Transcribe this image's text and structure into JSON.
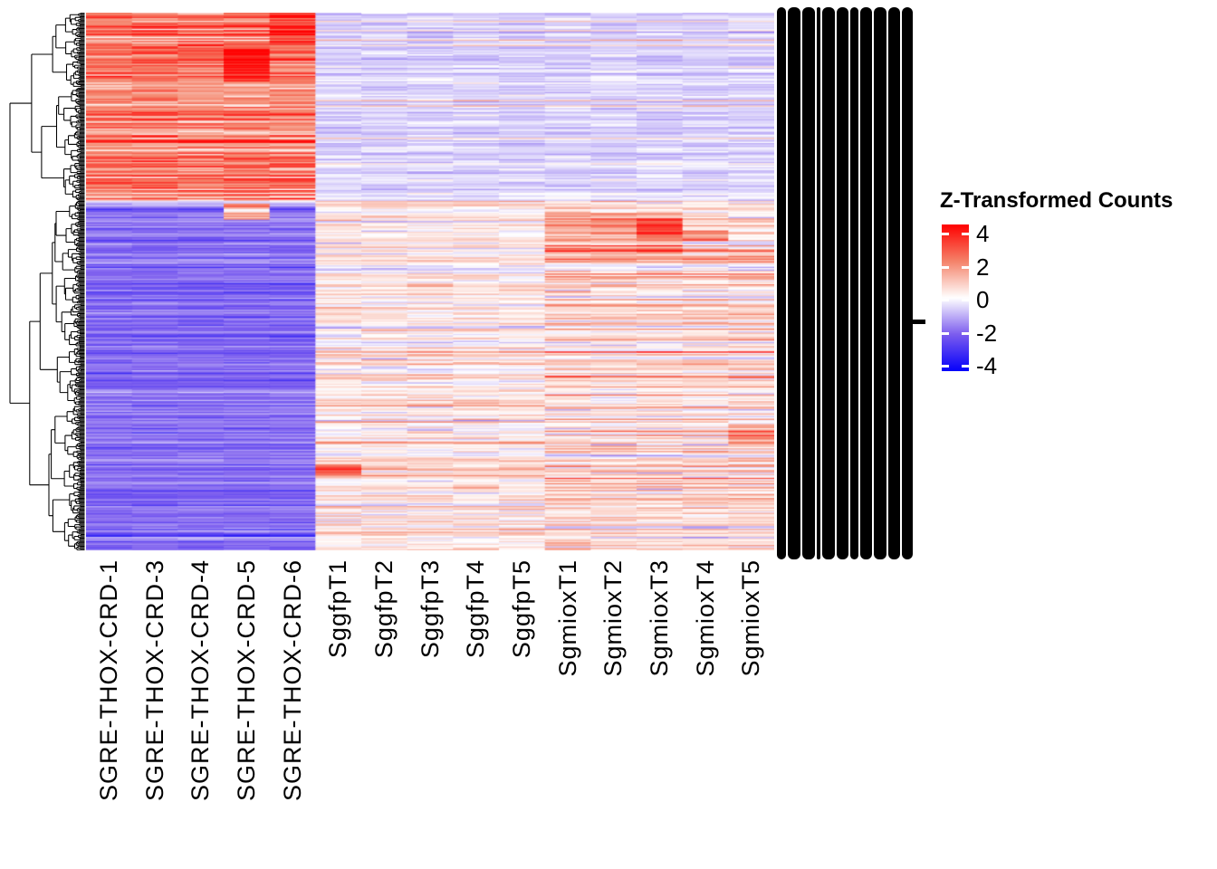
{
  "figure": {
    "background": "#FFFFFF"
  },
  "legend": {
    "title": "Z-Transformed Counts",
    "ticks": [
      "4",
      "2",
      "0",
      "-2",
      "-4"
    ]
  },
  "row_label_panel": {
    "overplotted": true,
    "legible": false,
    "bar_count": 11
  },
  "chart_data": {
    "type": "heatmap",
    "title": "",
    "columns": [
      "SGRE-THOX-CRD-1",
      "SGRE-THOX-CRD-3",
      "SGRE-THOX-CRD-4",
      "SGRE-THOX-CRD-5",
      "SGRE-THOX-CRD-6",
      "SggfpT1",
      "SggfpT2",
      "SggfpT3",
      "SggfpT4",
      "SggfpT5",
      "SgmioxT1",
      "SgmioxT2",
      "SgmioxT3",
      "SgmioxT4",
      "SgmioxT5"
    ],
    "column_groups": [
      {
        "name": "SGRE-THOX-CRD",
        "columns": [
          0,
          1,
          2,
          3,
          4
        ]
      },
      {
        "name": "Sggfp",
        "columns": [
          5,
          6,
          7,
          8,
          9
        ]
      },
      {
        "name": "Sgmiox",
        "columns": [
          10,
          11,
          12,
          13,
          14
        ]
      }
    ],
    "n_rows_visual": 400,
    "row_labels": {
      "overplotted": true,
      "legible": false
    },
    "value_range": [
      -4,
      4
    ],
    "legend_title": "Z-Transformed Counts",
    "legend_ticks": [
      4,
      2,
      0,
      -2,
      -4
    ],
    "colormap": {
      "stops": [
        {
          "t": 0.0,
          "color": "#0500FA"
        },
        {
          "t": 0.25,
          "color": "#7B5CEE"
        },
        {
          "t": 0.5,
          "color": "#FFFFFF"
        },
        {
          "t": 0.75,
          "color": "#F48269"
        },
        {
          "t": 1.0,
          "color": "#FF0000"
        }
      ]
    },
    "row_blocks": [
      {
        "name": "up-in-SGRE-THOX-CRD",
        "fraction": 0.35,
        "group_means": {
          "SGRE-THOX-CRD": 2.05,
          "Sggfp": -0.52,
          "Sgmiox": -0.52
        },
        "group_sd": {
          "SGRE-THOX-CRD": 0.75,
          "Sggfp": 0.26,
          "Sgmiox": 0.26
        }
      },
      {
        "name": "down-in-SGRE-THOX-CRD",
        "fraction": 0.65,
        "group_means": {
          "SGRE-THOX-CRD": -1.85,
          "Sggfp": 0.33,
          "Sgmiox": 0.5
        },
        "group_sd": {
          "SGRE-THOX-CRD": 0.42,
          "Sggfp": 0.5,
          "Sgmiox": 0.6
        }
      }
    ],
    "hotspots": [
      {
        "cols": [
          4
        ],
        "row_frac": [
          0.0,
          0.06
        ],
        "add": 1.2
      },
      {
        "cols": [
          3
        ],
        "row_frac": [
          0.067,
          0.128
        ],
        "add": 1.6
      },
      {
        "cols": [
          3
        ],
        "row_frac": [
          0.355,
          0.385
        ],
        "add": 3.2
      },
      {
        "cols": [
          5,
          6,
          7,
          8,
          9
        ],
        "row_frac": [
          0.35,
          0.365
        ],
        "add": 0.5
      },
      {
        "cols": [
          10,
          11,
          12
        ],
        "row_frac": [
          0.37,
          0.45
        ],
        "add": 1.1
      },
      {
        "cols": [
          12
        ],
        "row_frac": [
          0.385,
          0.42
        ],
        "add": 1.5
      },
      {
        "cols": [
          13
        ],
        "row_frac": [
          0.405,
          0.425
        ],
        "add": 1.7
      },
      {
        "cols": [
          14
        ],
        "row_frac": [
          0.765,
          0.805
        ],
        "add": 1.3
      },
      {
        "cols": [
          5
        ],
        "row_frac": [
          0.84,
          0.86
        ],
        "add": 1.9
      }
    ],
    "seed": 1234,
    "dendrogram": {
      "side": "left",
      "leaves": 460,
      "first_split_fraction": 0.35,
      "seed": 99
    }
  }
}
